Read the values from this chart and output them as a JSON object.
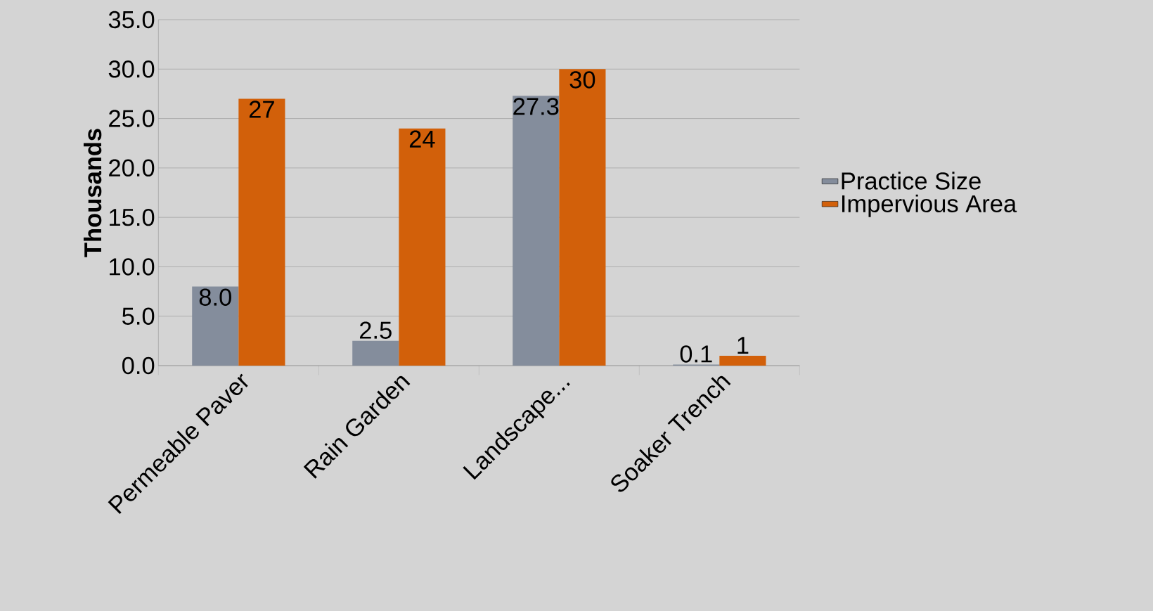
{
  "chart_data": {
    "type": "bar",
    "ylabel": "Thousands",
    "categories": [
      "Permeable Paver",
      "Rain Garden",
      "Landscape...",
      "Soaker Trench"
    ],
    "series": [
      {
        "name": "Practice Size",
        "color": "#848d9c",
        "values": [
          8.0,
          2.5,
          27.3,
          0.1
        ],
        "value_labels": [
          "8.0",
          "2.5",
          "27.3",
          "0.1"
        ]
      },
      {
        "name": "Impervious Area",
        "color": "#d2600a",
        "values": [
          27,
          24,
          30,
          1
        ],
        "value_labels": [
          "27",
          "24",
          "30",
          "1"
        ]
      }
    ],
    "ylim": [
      0,
      35
    ],
    "yticks": [
      {
        "value": 0,
        "label": "0.0"
      },
      {
        "value": 5,
        "label": "5.0"
      },
      {
        "value": 10,
        "label": "10.0"
      },
      {
        "value": 15,
        "label": "15.0"
      },
      {
        "value": 20,
        "label": "20.0"
      },
      {
        "value": 25,
        "label": "25.0"
      },
      {
        "value": 30,
        "label": "30.0"
      },
      {
        "value": 35,
        "label": "35.0"
      }
    ],
    "grid": "y",
    "legend": "right"
  }
}
